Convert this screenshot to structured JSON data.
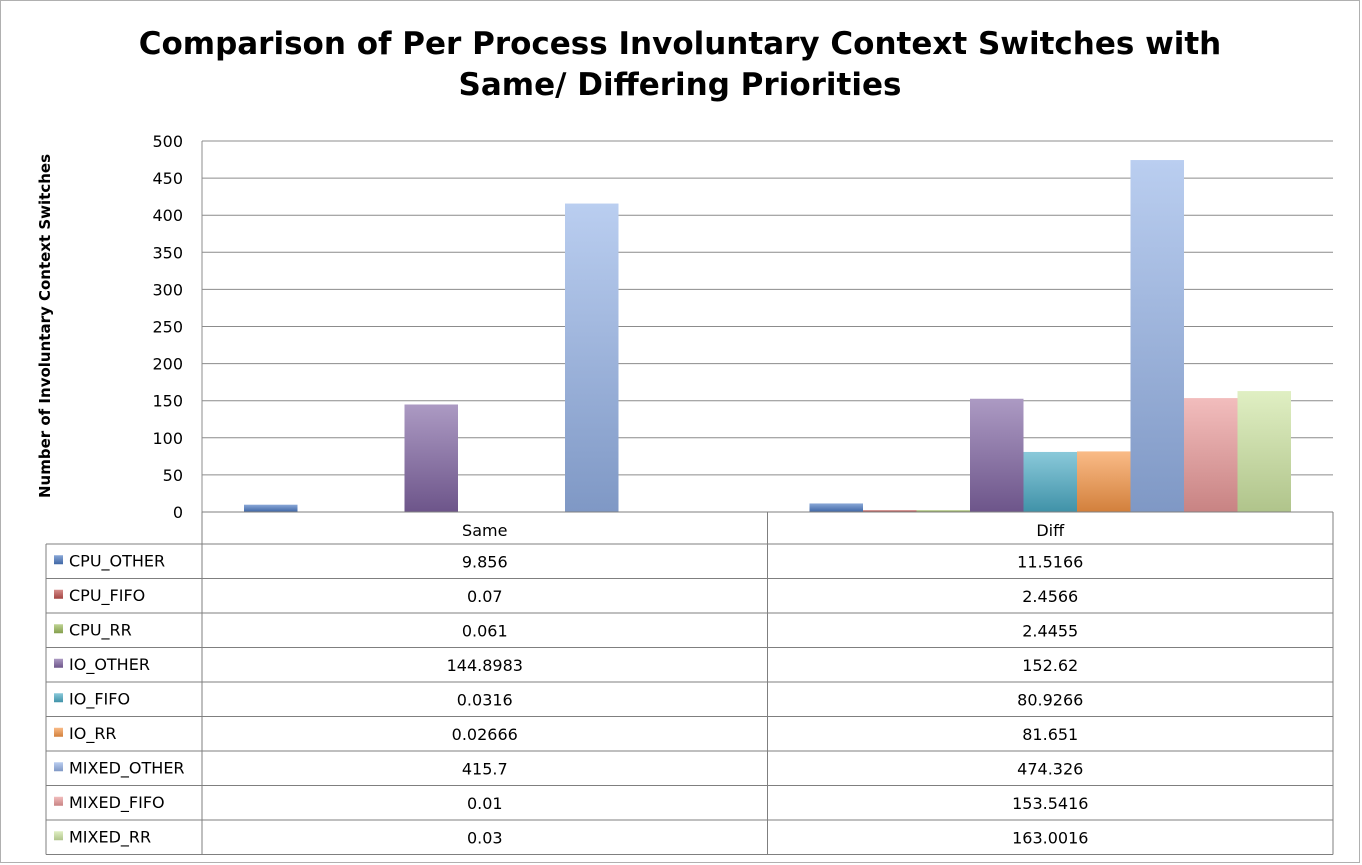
{
  "chart_data": {
    "type": "bar",
    "title": "Comparison of Per Process Involuntary Context Switches with Same/ Differing Priorities",
    "ylabel": "Number of Involuntary Context Switches",
    "xlabel": "",
    "ylim": [
      0,
      500
    ],
    "yticks": [
      0,
      50,
      100,
      150,
      200,
      250,
      300,
      350,
      400,
      450,
      500
    ],
    "grid": true,
    "legend": "data-table-left",
    "categories": [
      "Same",
      "Diff"
    ],
    "series": [
      {
        "name": "CPU_OTHER",
        "values": [
          9.856,
          11.5166
        ],
        "labels": [
          "9.856",
          "11.5166"
        ],
        "color": "#4a78c2"
      },
      {
        "name": "CPU_FIFO",
        "values": [
          0.07,
          2.4566
        ],
        "labels": [
          "0.07",
          "2.4566"
        ],
        "color": "#c0504d"
      },
      {
        "name": "CPU_RR",
        "values": [
          0.061,
          2.4455
        ],
        "labels": [
          "0.061",
          "2.4455"
        ],
        "color": "#9bbb59"
      },
      {
        "name": "IO_OTHER",
        "values": [
          144.8983,
          152.62
        ],
        "labels": [
          "144.8983",
          "152.62"
        ],
        "color": "#8064a2"
      },
      {
        "name": "IO_FIFO",
        "values": [
          0.0316,
          80.9266
        ],
        "labels": [
          "0.0316",
          "80.9266"
        ],
        "color": "#4bacc6"
      },
      {
        "name": "IO_RR",
        "values": [
          0.02666,
          81.651
        ],
        "labels": [
          "0.02666",
          "81.651"
        ],
        "color": "#f79646"
      },
      {
        "name": "MIXED_OTHER",
        "values": [
          415.7,
          474.326
        ],
        "labels": [
          "415.7",
          "474.326"
        ],
        "color": "#95b3e8"
      },
      {
        "name": "MIXED_FIFO",
        "values": [
          0.01,
          153.5416
        ],
        "labels": [
          "0.01",
          "153.5416"
        ],
        "color": "#eb9a9a"
      },
      {
        "name": "MIXED_RR",
        "values": [
          0.03,
          163.0016
        ],
        "labels": [
          "0.03",
          "163.0016"
        ],
        "color": "#cfe6a3"
      }
    ]
  }
}
